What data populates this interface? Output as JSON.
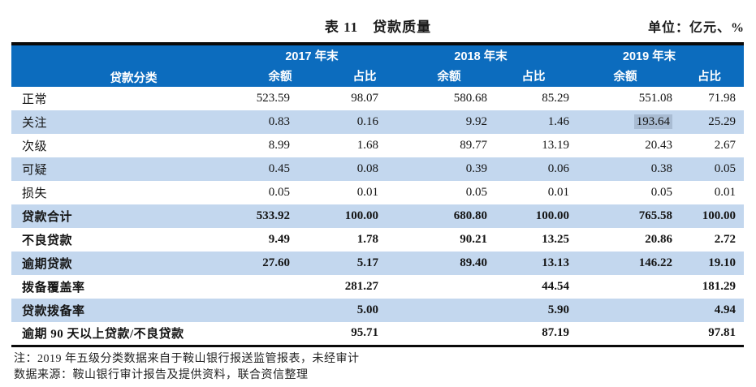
{
  "title": "表 11　贷款质量",
  "unit_label": "单位：亿元、%",
  "table": {
    "classification_header": "贷款分类",
    "year_headers": [
      "2017 年末",
      "2018 年末",
      "2019 年末"
    ],
    "sub_headers": [
      "余额",
      "占比"
    ],
    "rows": [
      {
        "label": "正常",
        "values": [
          "523.59",
          "98.07",
          "580.68",
          "85.29",
          "551.08",
          "71.98"
        ],
        "bold": false,
        "striped": false,
        "highlight_col": null
      },
      {
        "label": "关注",
        "values": [
          "0.83",
          "0.16",
          "9.92",
          "1.46",
          "193.64",
          "25.29"
        ],
        "bold": false,
        "striped": true,
        "highlight_col": 4
      },
      {
        "label": "次级",
        "values": [
          "8.99",
          "1.68",
          "89.77",
          "13.19",
          "20.43",
          "2.67"
        ],
        "bold": false,
        "striped": false,
        "highlight_col": null
      },
      {
        "label": "可疑",
        "values": [
          "0.45",
          "0.08",
          "0.39",
          "0.06",
          "0.38",
          "0.05"
        ],
        "bold": false,
        "striped": true,
        "highlight_col": null
      },
      {
        "label": "损失",
        "values": [
          "0.05",
          "0.01",
          "0.05",
          "0.01",
          "0.05",
          "0.01"
        ],
        "bold": false,
        "striped": false,
        "highlight_col": null
      },
      {
        "label": "贷款合计",
        "values": [
          "533.92",
          "100.00",
          "680.80",
          "100.00",
          "765.58",
          "100.00"
        ],
        "bold": true,
        "striped": true,
        "highlight_col": null
      },
      {
        "label": "不良贷款",
        "values": [
          "9.49",
          "1.78",
          "90.21",
          "13.25",
          "20.86",
          "2.72"
        ],
        "bold": true,
        "striped": false,
        "highlight_col": null
      },
      {
        "label": "逾期贷款",
        "values": [
          "27.60",
          "5.17",
          "89.40",
          "13.13",
          "146.22",
          "19.10"
        ],
        "bold": true,
        "striped": true,
        "highlight_col": null
      },
      {
        "label": "拨备覆盖率",
        "values": [
          "",
          "281.27",
          "",
          "44.54",
          "",
          "181.29"
        ],
        "bold": true,
        "striped": false,
        "highlight_col": null
      },
      {
        "label": "贷款拨备率",
        "values": [
          "",
          "5.00",
          "",
          "5.90",
          "",
          "4.94"
        ],
        "bold": true,
        "striped": true,
        "highlight_col": null
      },
      {
        "label": "逾期 90 天以上贷款/不良贷款",
        "values": [
          "",
          "95.71",
          "",
          "87.19",
          "",
          "97.81"
        ],
        "bold": true,
        "striped": false,
        "highlight_col": null
      }
    ]
  },
  "notes": [
    "注：2019 年五级分类数据来自于鞍山银行报送监管报表，未经审计",
    "数据来源：鞍山银行审计报告及提供资料，联合资信整理"
  ],
  "colors": {
    "header_bg": "#0c6cbe",
    "header_text": "#ffffff",
    "stripe_bg": "#c3d7ee",
    "highlight_bg": "#a9bcd3",
    "border": "#0a0a0a",
    "text": "#141414"
  }
}
